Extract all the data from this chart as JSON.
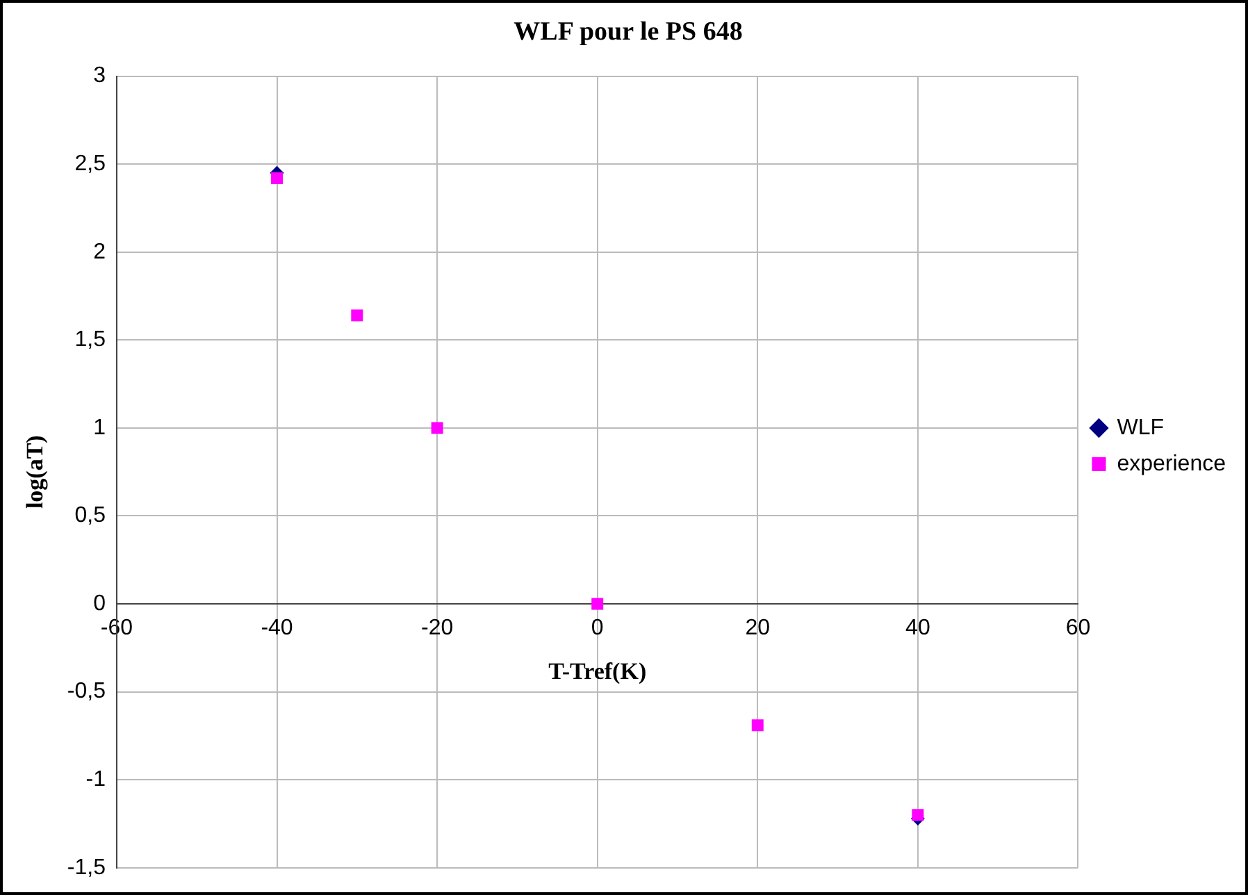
{
  "chart_data": {
    "type": "scatter",
    "title": "WLF pour le PS 648",
    "xlabel": "T-Tref(K)",
    "ylabel": "log(aT)",
    "x": [
      -40,
      -30,
      -20,
      0,
      20,
      40
    ],
    "series": [
      {
        "name": "WLF",
        "color": "#000080",
        "marker": "diamond",
        "values": [
          2.45,
          null,
          null,
          null,
          null,
          -1.22
        ]
      },
      {
        "name": "experience",
        "color": "#ff00ff",
        "marker": "square",
        "values": [
          2.42,
          1.64,
          1.0,
          0,
          -0.69,
          -1.2
        ]
      }
    ],
    "xlim": [
      -60,
      60
    ],
    "xticks": [
      -60,
      -40,
      -20,
      0,
      20,
      40,
      60
    ],
    "ylim": [
      -1.5,
      3
    ],
    "yticks": [
      {
        "value": -1.5,
        "label": "-1,5"
      },
      -1,
      {
        "value": -0.5,
        "label": "-0,5"
      },
      0,
      {
        "value": 0.5,
        "label": "0,5"
      },
      1,
      {
        "value": 1.5,
        "label": "1,5"
      },
      2,
      {
        "value": 2.5,
        "label": "2,5"
      },
      3
    ],
    "grid": true,
    "legend": "right"
  }
}
